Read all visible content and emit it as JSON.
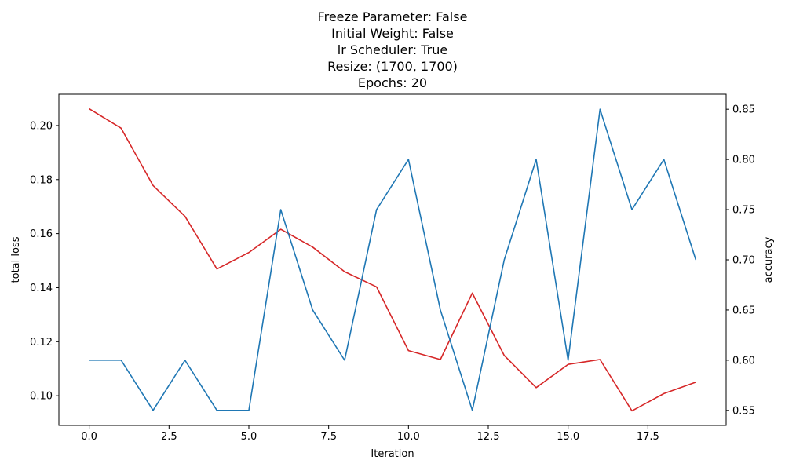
{
  "chart_data": {
    "type": "line",
    "title_lines": [
      "Freeze Parameter: False",
      "Initial Weight: False",
      "lr Scheduler: True",
      "Resize: (1700, 1700)",
      "Epochs: 20"
    ],
    "xlabel": "Iteration",
    "ylabel_left": "total loss",
    "ylabel_right": "accuracy",
    "x": [
      0,
      1,
      2,
      3,
      4,
      5,
      6,
      7,
      8,
      9,
      10,
      11,
      12,
      13,
      14,
      15,
      16,
      17,
      18,
      19
    ],
    "xlim": [
      -0.95,
      19.95
    ],
    "xticks": [
      0.0,
      2.5,
      5.0,
      7.5,
      10.0,
      12.5,
      15.0,
      17.5
    ],
    "xtick_labels": [
      "0.0",
      "2.5",
      "5.0",
      "7.5",
      "10.0",
      "12.5",
      "15.0",
      "17.5"
    ],
    "left_axis": {
      "ylim": [
        0.089,
        0.2116
      ],
      "ticks": [
        0.1,
        0.12,
        0.14,
        0.16,
        0.18,
        0.2
      ],
      "tick_labels": [
        "0.10",
        "0.12",
        "0.14",
        "0.16",
        "0.18",
        "0.20"
      ],
      "color": "#d62728"
    },
    "right_axis": {
      "ylim": [
        0.535,
        0.865
      ],
      "ticks": [
        0.55,
        0.6,
        0.65,
        0.7,
        0.75,
        0.8,
        0.85
      ],
      "tick_labels": [
        "0.55",
        "0.60",
        "0.65",
        "0.70",
        "0.75",
        "0.80",
        "0.85"
      ],
      "color": "#1f77b4"
    },
    "series": [
      {
        "axis": "left",
        "color": "#d62728",
        "values": [
          0.2062,
          0.199,
          0.1778,
          0.1664,
          0.1469,
          0.153,
          0.1616,
          0.155,
          0.1459,
          0.1403,
          0.1167,
          0.1134,
          0.138,
          0.1149,
          0.103,
          0.1116,
          0.1134,
          0.0944,
          0.1008,
          0.105
        ]
      },
      {
        "axis": "right",
        "color": "#1f77b4",
        "values": [
          0.6,
          0.6,
          0.55,
          0.6,
          0.55,
          0.55,
          0.75,
          0.65,
          0.6,
          0.75,
          0.8,
          0.65,
          0.55,
          0.7,
          0.8,
          0.6,
          0.85,
          0.75,
          0.8,
          0.7
        ]
      }
    ],
    "grid": false
  }
}
